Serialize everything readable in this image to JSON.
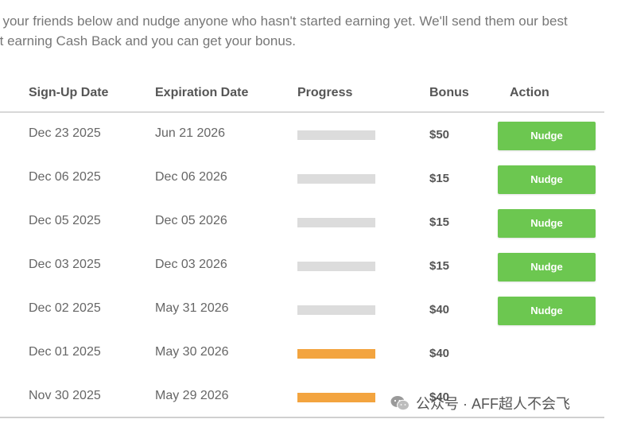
{
  "intro": {
    "line1": "f your friends below and nudge anyone who hasn't started earning yet. We'll send them our best",
    "line2": "rt earning Cash Back and you can get your bonus."
  },
  "table": {
    "headers": {
      "signup": "Sign-Up Date",
      "expiration": "Expiration Date",
      "progress": "Progress",
      "bonus": "Bonus",
      "action": "Action"
    },
    "nudge_label": "Nudge",
    "rows": [
      {
        "signup": "Dec 23 2025",
        "expiration": "Jun 21 2026",
        "progress": 0,
        "bonus": "$50",
        "nudge": true
      },
      {
        "signup": "Dec 06 2025",
        "expiration": "Dec 06 2026",
        "progress": 0,
        "bonus": "$15",
        "nudge": true
      },
      {
        "signup": "Dec 05 2025",
        "expiration": "Dec 05 2026",
        "progress": 0,
        "bonus": "$15",
        "nudge": true
      },
      {
        "signup": "Dec 03 2025",
        "expiration": "Dec 03 2026",
        "progress": 0,
        "bonus": "$15",
        "nudge": true
      },
      {
        "signup": "Dec 02 2025",
        "expiration": "May 31 2026",
        "progress": 0,
        "bonus": "$40",
        "nudge": true
      },
      {
        "signup": "Dec 01 2025",
        "expiration": "May 30 2026",
        "progress": 1,
        "bonus": "$40",
        "nudge": false
      },
      {
        "signup": "Nov 30 2025",
        "expiration": "May 29 2026",
        "progress": 1,
        "bonus": "$40",
        "nudge": false
      }
    ]
  },
  "colors": {
    "progress_complete": "#f3a43f",
    "progress_empty": "#dcdcdc",
    "nudge_button": "#6cc750"
  },
  "watermark": {
    "text": "公众号 · AFF超人不会飞",
    "icon": "wechat-icon"
  }
}
